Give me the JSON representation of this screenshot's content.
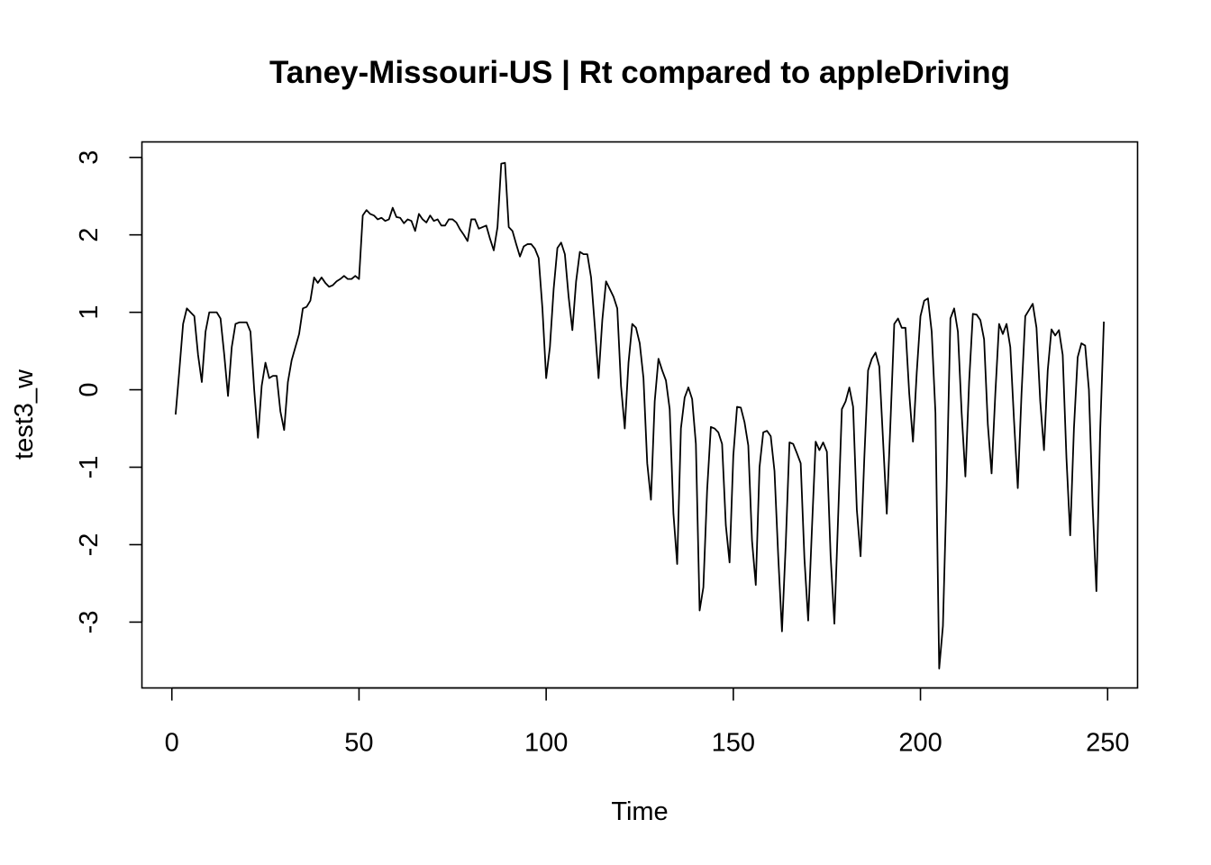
{
  "chart_data": {
    "type": "line",
    "title": "Taney-Missouri-US | Rt compared to appleDriving",
    "xlabel": "Time",
    "ylabel": "test3_w",
    "xlim": [
      -8,
      258
    ],
    "ylim": [
      -3.85,
      3.2
    ],
    "xticks": [
      0,
      50,
      100,
      150,
      200,
      250
    ],
    "yticks": [
      -3,
      -2,
      -1,
      0,
      1,
      2,
      3
    ],
    "grid": false,
    "legend": "none",
    "line_color": "#000000",
    "series": [
      {
        "x_start": 1,
        "values": [
          -0.32,
          0.25,
          0.85,
          1.05,
          1.0,
          0.95,
          0.45,
          0.1,
          0.75,
          1.0,
          1.0,
          1.0,
          0.92,
          0.45,
          -0.08,
          0.55,
          0.85,
          0.87,
          0.87,
          0.87,
          0.75,
          0.0,
          -0.62,
          0.05,
          0.35,
          0.15,
          0.18,
          0.18,
          -0.28,
          -0.52,
          0.1,
          0.38,
          0.55,
          0.72,
          1.05,
          1.07,
          1.15,
          1.45,
          1.38,
          1.45,
          1.38,
          1.33,
          1.35,
          1.4,
          1.43,
          1.47,
          1.43,
          1.43,
          1.47,
          1.43,
          2.25,
          2.32,
          2.27,
          2.25,
          2.2,
          2.22,
          2.18,
          2.2,
          2.35,
          2.23,
          2.22,
          2.15,
          2.2,
          2.18,
          2.05,
          2.27,
          2.2,
          2.16,
          2.25,
          2.18,
          2.2,
          2.12,
          2.12,
          2.2,
          2.2,
          2.16,
          2.07,
          2.0,
          1.92,
          2.2,
          2.2,
          2.08,
          2.1,
          2.12,
          1.95,
          1.8,
          2.1,
          2.92,
          2.93,
          2.1,
          2.05,
          1.88,
          1.72,
          1.85,
          1.88,
          1.88,
          1.82,
          1.7,
          1.05,
          0.15,
          0.55,
          1.3,
          1.83,
          1.9,
          1.75,
          1.2,
          0.77,
          1.4,
          1.78,
          1.75,
          1.75,
          1.45,
          0.82,
          0.15,
          0.9,
          1.4,
          1.3,
          1.2,
          1.05,
          0.05,
          -0.5,
          0.35,
          0.85,
          0.8,
          0.6,
          0.15,
          -0.95,
          -1.42,
          -0.15,
          0.4,
          0.25,
          0.12,
          -0.25,
          -1.6,
          -2.25,
          -0.5,
          -0.1,
          0.03,
          -0.12,
          -0.7,
          -2.85,
          -2.55,
          -1.3,
          -0.48,
          -0.5,
          -0.55,
          -0.7,
          -1.75,
          -2.23,
          -0.85,
          -0.22,
          -0.23,
          -0.42,
          -0.72,
          -1.95,
          -2.52,
          -1.0,
          -0.55,
          -0.53,
          -0.6,
          -1.05,
          -2.15,
          -3.12,
          -2.0,
          -0.68,
          -0.7,
          -0.82,
          -0.95,
          -2.18,
          -2.98,
          -1.8,
          -0.67,
          -0.78,
          -0.68,
          -0.8,
          -2.15,
          -3.02,
          -1.65,
          -0.25,
          -0.15,
          0.03,
          -0.22,
          -1.55,
          -2.15,
          -0.88,
          0.25,
          0.4,
          0.48,
          0.3,
          -0.65,
          -1.6,
          -0.4,
          0.85,
          0.92,
          0.8,
          0.8,
          -0.05,
          -0.67,
          0.22,
          0.95,
          1.15,
          1.18,
          0.75,
          -0.3,
          -3.6,
          -3.05,
          -1.25,
          0.92,
          1.05,
          0.75,
          -0.3,
          -1.12,
          0.1,
          0.98,
          0.97,
          0.9,
          0.65,
          -0.45,
          -1.08,
          -0.05,
          0.85,
          0.72,
          0.85,
          0.55,
          -0.4,
          -1.27,
          -0.05,
          0.95,
          1.03,
          1.11,
          0.8,
          -0.15,
          -0.78,
          0.25,
          0.78,
          0.7,
          0.77,
          0.45,
          -0.88,
          -1.88,
          -0.5,
          0.42,
          0.6,
          0.57,
          0.0,
          -1.5,
          -2.6,
          -0.55,
          0.88
        ]
      }
    ]
  }
}
